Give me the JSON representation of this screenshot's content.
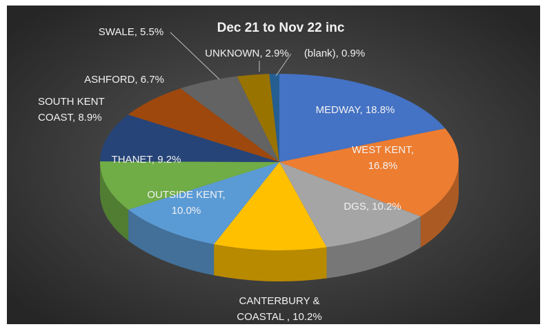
{
  "chart_data": {
    "type": "pie3d",
    "title": "Dec 21 to Nov 22 inc",
    "values": [
      18.8,
      16.8,
      10.2,
      10.2,
      10.0,
      9.2,
      8.9,
      6.7,
      5.5,
      2.9,
      0.9
    ],
    "value_labels": [
      "MEDWAY, 18.8%",
      "WEST KENT,\n16.8%",
      "DGS, 10.2%",
      "CANTERBURY &\nCOASTAL , 10.2%",
      "OUTSIDE KENT,\n10.0%",
      "THANET, 9.2%",
      "SOUTH KENT\nCOAST, 8.9%",
      "ASHFORD, 6.7%",
      "SWALE, 5.5%",
      "UNKNOWN, 2.9%",
      "(blank), 0.9%"
    ],
    "colors": [
      "#4472c4",
      "#ed7d31",
      "#a5a5a5",
      "#ffc000",
      "#5b9bd5",
      "#70ad47",
      "#264478",
      "#9e480e",
      "#636363",
      "#997300",
      "#255e91"
    ]
  }
}
